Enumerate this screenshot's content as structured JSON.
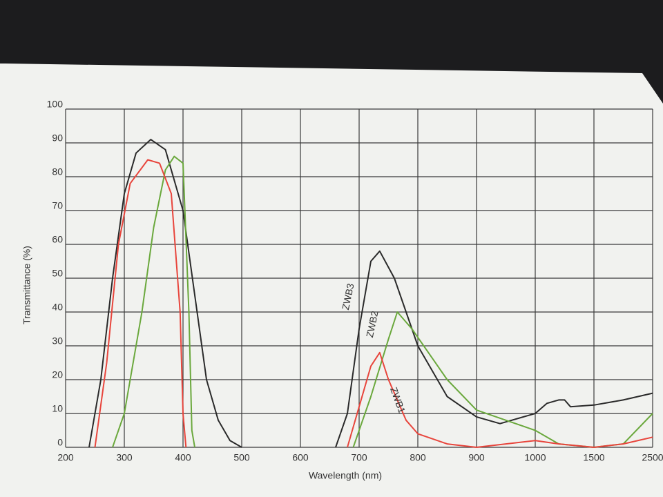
{
  "chart_data": {
    "type": "line",
    "x_label": "Wavelength (nm)",
    "y_label": "Transmittance (%)",
    "xlim": [
      200,
      2500
    ],
    "xticks": [
      200,
      300,
      400,
      500,
      600,
      700,
      800,
      900,
      1000,
      1500,
      2500
    ],
    "ylim": [
      0,
      100
    ],
    "yticks": [
      0,
      10,
      20,
      30,
      40,
      50,
      60,
      70,
      80,
      90,
      100
    ],
    "grid": true,
    "series": [
      {
        "name": "ZWB3",
        "color": "#2a2a2a",
        "x": [
          240,
          260,
          280,
          300,
          320,
          345,
          370,
          400,
          420,
          440,
          460,
          480,
          500,
          580,
          660,
          680,
          700,
          720,
          735,
          760,
          800,
          850,
          900,
          940,
          1000,
          1100,
          1200,
          1250,
          1300,
          1500,
          2000,
          2500
        ],
        "values": [
          0,
          20,
          50,
          75,
          87,
          91,
          88,
          70,
          45,
          20,
          8,
          2,
          0,
          null,
          0,
          10,
          35,
          55,
          58,
          50,
          30,
          15,
          9,
          7,
          10,
          13,
          14,
          14,
          12,
          12.5,
          14,
          16
        ]
      },
      {
        "name": "ZWB2",
        "color": "#6aa83c",
        "x": [
          280,
          300,
          330,
          350,
          370,
          385,
          400,
          410,
          415,
          420,
          580,
          690,
          720,
          750,
          765,
          790,
          850,
          900,
          950,
          1000,
          1200,
          1500,
          2000,
          2500
        ],
        "values": [
          0,
          10,
          40,
          65,
          82,
          86,
          84,
          40,
          5,
          0,
          null,
          0,
          15,
          32,
          40,
          35,
          20,
          11,
          8,
          5,
          1,
          0,
          1,
          10
        ]
      },
      {
        "name": "ZWB1",
        "color": "#e8453c",
        "x": [
          250,
          270,
          290,
          310,
          340,
          360,
          380,
          395,
          400,
          405,
          580,
          680,
          700,
          720,
          735,
          750,
          780,
          800,
          850,
          900,
          1000,
          1200,
          1500,
          2000,
          2500
        ],
        "values": [
          0,
          25,
          60,
          78,
          85,
          84,
          75,
          40,
          10,
          0,
          null,
          0,
          12,
          24,
          28,
          20,
          8,
          4,
          1,
          0,
          2,
          1,
          0,
          1,
          3
        ]
      }
    ]
  }
}
